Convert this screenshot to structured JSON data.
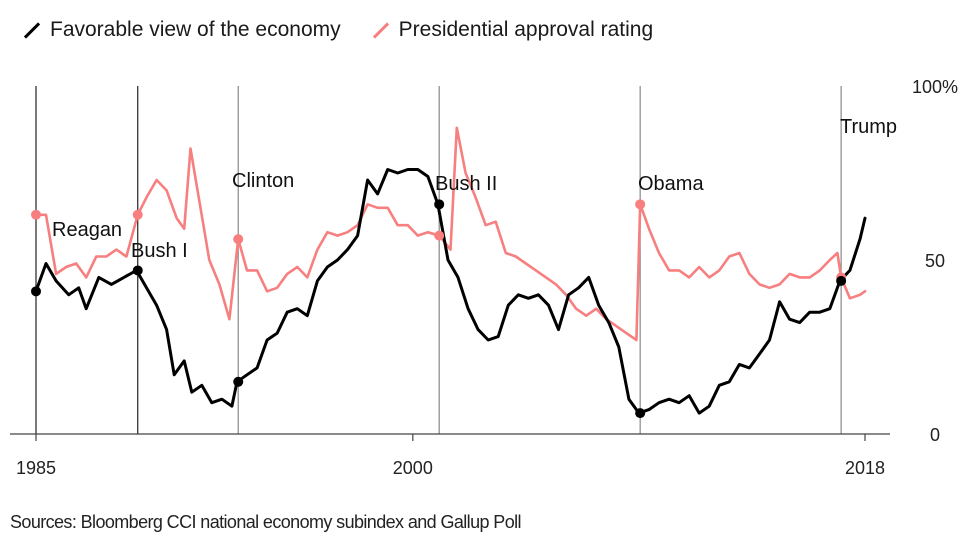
{
  "legend": {
    "favorable_label": "Favorable view of the economy",
    "approval_label": "Presidential approval rating"
  },
  "source": "Sources: Bloomberg CCI national economy subindex and Gallup Poll",
  "colors": {
    "favorable": "#000000",
    "approval": "#f77f7f",
    "grid": "#555555"
  },
  "chart_data": {
    "type": "line",
    "title": "",
    "xlabel": "",
    "ylabel": "",
    "xlim": [
      1985,
      2018
    ],
    "ylim": [
      0,
      100
    ],
    "x_ticks": [
      1985,
      2000,
      2018
    ],
    "x_tick_labels": [
      "1985",
      "2000",
      "2018"
    ],
    "y_ticks": [
      0,
      50,
      100
    ],
    "y_tick_labels": [
      "0",
      "50",
      "100%"
    ],
    "presidents": [
      {
        "name": "Reagan",
        "start": 1985.0,
        "favorable": 41,
        "approval": 63
      },
      {
        "name": "Bush I",
        "start": 1989.05,
        "favorable": 47,
        "approval": 63
      },
      {
        "name": "Clinton",
        "start": 1993.05,
        "favorable": 15,
        "approval": 56
      },
      {
        "name": "Bush II",
        "start": 2001.05,
        "favorable": 66,
        "approval": 57
      },
      {
        "name": "Obama",
        "start": 2009.05,
        "favorable": 6,
        "approval": 66
      },
      {
        "name": "Trump",
        "start": 2017.05,
        "favorable": 44,
        "approval": 45
      }
    ],
    "series": [
      {
        "name": "Favorable view of the economy",
        "x": [
          1985.0,
          1985.4,
          1985.8,
          1986.3,
          1986.7,
          1987.0,
          1987.5,
          1988.0,
          1988.5,
          1989.0,
          1989.4,
          1989.8,
          1990.2,
          1990.5,
          1990.9,
          1991.2,
          1991.6,
          1992.0,
          1992.4,
          1992.8,
          1993.0,
          1993.4,
          1993.8,
          1994.2,
          1994.6,
          1995.0,
          1995.4,
          1995.8,
          1996.2,
          1996.6,
          1997.0,
          1997.4,
          1997.8,
          1998.2,
          1998.6,
          1999.0,
          1999.4,
          1999.8,
          2000.2,
          2000.6,
          2001.0,
          2001.4,
          2001.8,
          2002.2,
          2002.6,
          2003.0,
          2003.4,
          2003.8,
          2004.2,
          2004.6,
          2005.0,
          2005.4,
          2005.8,
          2006.2,
          2006.6,
          2007.0,
          2007.4,
          2007.8,
          2008.2,
          2008.6,
          2009.0,
          2009.4,
          2009.8,
          2010.2,
          2010.6,
          2011.0,
          2011.4,
          2011.8,
          2012.2,
          2012.6,
          2013.0,
          2013.4,
          2013.8,
          2014.2,
          2014.6,
          2015.0,
          2015.4,
          2015.8,
          2016.2,
          2016.6,
          2017.0,
          2017.4,
          2017.8,
          2018.0
        ],
        "values": [
          41,
          49,
          44,
          40,
          42,
          36,
          45,
          43,
          45,
          47,
          42,
          37,
          30,
          17,
          21,
          12,
          14,
          9,
          10,
          8,
          15,
          17,
          19,
          27,
          29,
          35,
          36,
          34,
          44,
          48,
          50,
          53,
          57,
          73,
          69,
          76,
          75,
          76,
          76,
          74,
          66,
          50,
          45,
          36,
          30,
          27,
          28,
          37,
          40,
          39,
          40,
          37,
          30,
          40,
          42,
          45,
          37,
          32,
          25,
          10,
          6,
          7,
          9,
          10,
          9,
          11,
          6,
          8,
          14,
          15,
          20,
          19,
          23,
          27,
          38,
          33,
          32,
          35,
          35,
          36,
          44,
          47,
          56,
          62
        ]
      },
      {
        "name": "Presidential approval rating",
        "x": [
          1985.0,
          1985.4,
          1985.8,
          1986.2,
          1986.6,
          1987.0,
          1987.4,
          1987.8,
          1988.2,
          1988.6,
          1989.05,
          1989.4,
          1989.8,
          1990.2,
          1990.6,
          1990.9,
          1991.15,
          1991.5,
          1991.9,
          1992.3,
          1992.7,
          1993.05,
          1993.4,
          1993.8,
          1994.2,
          1994.6,
          1995.0,
          1995.4,
          1995.8,
          1996.2,
          1996.6,
          1997.0,
          1997.4,
          1997.8,
          1998.2,
          1998.6,
          1999.0,
          1999.4,
          1999.8,
          2000.2,
          2000.6,
          2001.05,
          2001.5,
          2001.75,
          2002.1,
          2002.5,
          2002.9,
          2003.3,
          2003.7,
          2004.1,
          2004.5,
          2004.9,
          2005.3,
          2005.7,
          2006.1,
          2006.5,
          2006.9,
          2007.3,
          2007.7,
          2008.1,
          2008.5,
          2008.9,
          2009.05,
          2009.4,
          2009.8,
          2010.2,
          2010.6,
          2011.0,
          2011.4,
          2011.8,
          2012.2,
          2012.6,
          2013.0,
          2013.4,
          2013.8,
          2014.2,
          2014.6,
          2015.0,
          2015.4,
          2015.8,
          2016.2,
          2016.6,
          2016.9,
          2017.05,
          2017.4,
          2017.8,
          2018.0
        ],
        "values": [
          63,
          63,
          46,
          48,
          49,
          45,
          51,
          51,
          53,
          51,
          63,
          68,
          73,
          70,
          62,
          59,
          82,
          67,
          50,
          43,
          33,
          56,
          47,
          47,
          41,
          42,
          46,
          48,
          45,
          53,
          58,
          57,
          58,
          60,
          66,
          65,
          65,
          60,
          60,
          57,
          58,
          57,
          53,
          88,
          75,
          68,
          60,
          61,
          52,
          51,
          49,
          47,
          45,
          43,
          40,
          36,
          34,
          36,
          33,
          31,
          29,
          27,
          66,
          59,
          52,
          47,
          47,
          45,
          48,
          45,
          47,
          51,
          52,
          46,
          43,
          42,
          43,
          46,
          45,
          45,
          47,
          50,
          52,
          45,
          39,
          40,
          41
        ]
      }
    ]
  }
}
